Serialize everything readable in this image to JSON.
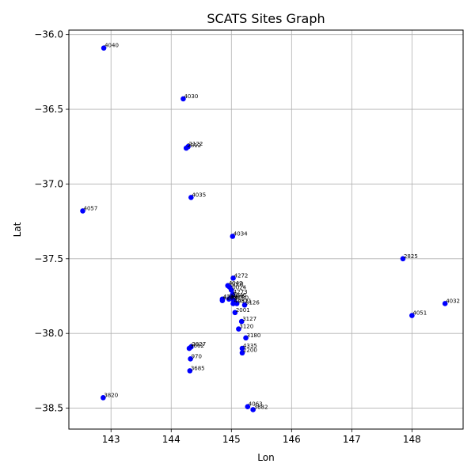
{
  "chart_data": {
    "type": "scatter",
    "title": "SCATS Sites Graph",
    "xlabel": "Lon",
    "ylabel": "Lat",
    "xlim": [
      142.3,
      148.85
    ],
    "ylim": [
      -38.64,
      -35.97
    ],
    "grid": true,
    "point_color": "#0000ff",
    "x_ticks": [
      {
        "v": 143,
        "label": "143"
      },
      {
        "v": 144,
        "label": "144"
      },
      {
        "v": 145,
        "label": "145"
      },
      {
        "v": 146,
        "label": "146"
      },
      {
        "v": 147,
        "label": "147"
      },
      {
        "v": 148,
        "label": "148"
      }
    ],
    "y_ticks": [
      {
        "v": -36.0,
        "label": "−36.0"
      },
      {
        "v": -36.5,
        "label": "−36.5"
      },
      {
        "v": -37.0,
        "label": "−37.0"
      },
      {
        "v": -37.5,
        "label": "−37.5"
      },
      {
        "v": -38.0,
        "label": "−38.0"
      },
      {
        "v": -38.5,
        "label": "−38.5"
      }
    ],
    "points": [
      {
        "label": "4040",
        "lon": 142.88,
        "lat": -36.09
      },
      {
        "label": "4030",
        "lon": 144.2,
        "lat": -36.43
      },
      {
        "label": "2122",
        "lon": 144.28,
        "lat": -36.75
      },
      {
        "label": "2812",
        "lon": 144.25,
        "lat": -36.76
      },
      {
        "label": "4035",
        "lon": 144.33,
        "lat": -37.09
      },
      {
        "label": "4057",
        "lon": 142.53,
        "lat": -37.18
      },
      {
        "label": "4034",
        "lon": 145.02,
        "lat": -37.35
      },
      {
        "label": "2825",
        "lon": 147.85,
        "lat": -37.5
      },
      {
        "label": "4272",
        "lon": 145.03,
        "lat": -37.63
      },
      {
        "label": "4043",
        "lon": 144.94,
        "lat": -37.68
      },
      {
        "label": "3001",
        "lon": 144.97,
        "lat": -37.69
      },
      {
        "label": "0024",
        "lon": 145.0,
        "lat": -37.71
      },
      {
        "label": "4273",
        "lon": 145.02,
        "lat": -37.74
      },
      {
        "label": "4262",
        "lon": 144.85,
        "lat": -37.77
      },
      {
        "label": "4263",
        "lon": 144.85,
        "lat": -37.78
      },
      {
        "label": "2846",
        "lon": 145.0,
        "lat": -37.76
      },
      {
        "label": "4030",
        "lon": 145.04,
        "lat": -37.78
      },
      {
        "label": "3804",
        "lon": 144.96,
        "lat": -37.77
      },
      {
        "label": "4051",
        "lon": 145.03,
        "lat": -37.8
      },
      {
        "label": "4821",
        "lon": 145.09,
        "lat": -37.8
      },
      {
        "label": "3126",
        "lon": 145.22,
        "lat": -37.81
      },
      {
        "label": "2001",
        "lon": 145.06,
        "lat": -37.86
      },
      {
        "label": "3127",
        "lon": 145.17,
        "lat": -37.92
      },
      {
        "label": "3120",
        "lon": 145.12,
        "lat": -37.97
      },
      {
        "label": "3180",
        "lon": 145.24,
        "lat": -38.03
      },
      {
        "label": "4335",
        "lon": 145.18,
        "lat": -38.1
      },
      {
        "label": "2200",
        "lon": 145.18,
        "lat": -38.13
      },
      {
        "label": "3662",
        "lon": 144.3,
        "lat": -38.1
      },
      {
        "label": "2827",
        "lon": 144.33,
        "lat": -38.09
      },
      {
        "label": "970",
        "lon": 144.32,
        "lat": -38.17
      },
      {
        "label": "3685",
        "lon": 144.31,
        "lat": -38.25
      },
      {
        "label": "4032",
        "lon": 148.55,
        "lat": -37.8
      },
      {
        "label": "4051",
        "lon": 148.0,
        "lat": -37.88
      },
      {
        "label": "3820",
        "lon": 142.87,
        "lat": -38.43
      },
      {
        "label": "4063",
        "lon": 145.27,
        "lat": -38.49
      },
      {
        "label": "3682",
        "lon": 145.36,
        "lat": -38.51
      }
    ]
  }
}
